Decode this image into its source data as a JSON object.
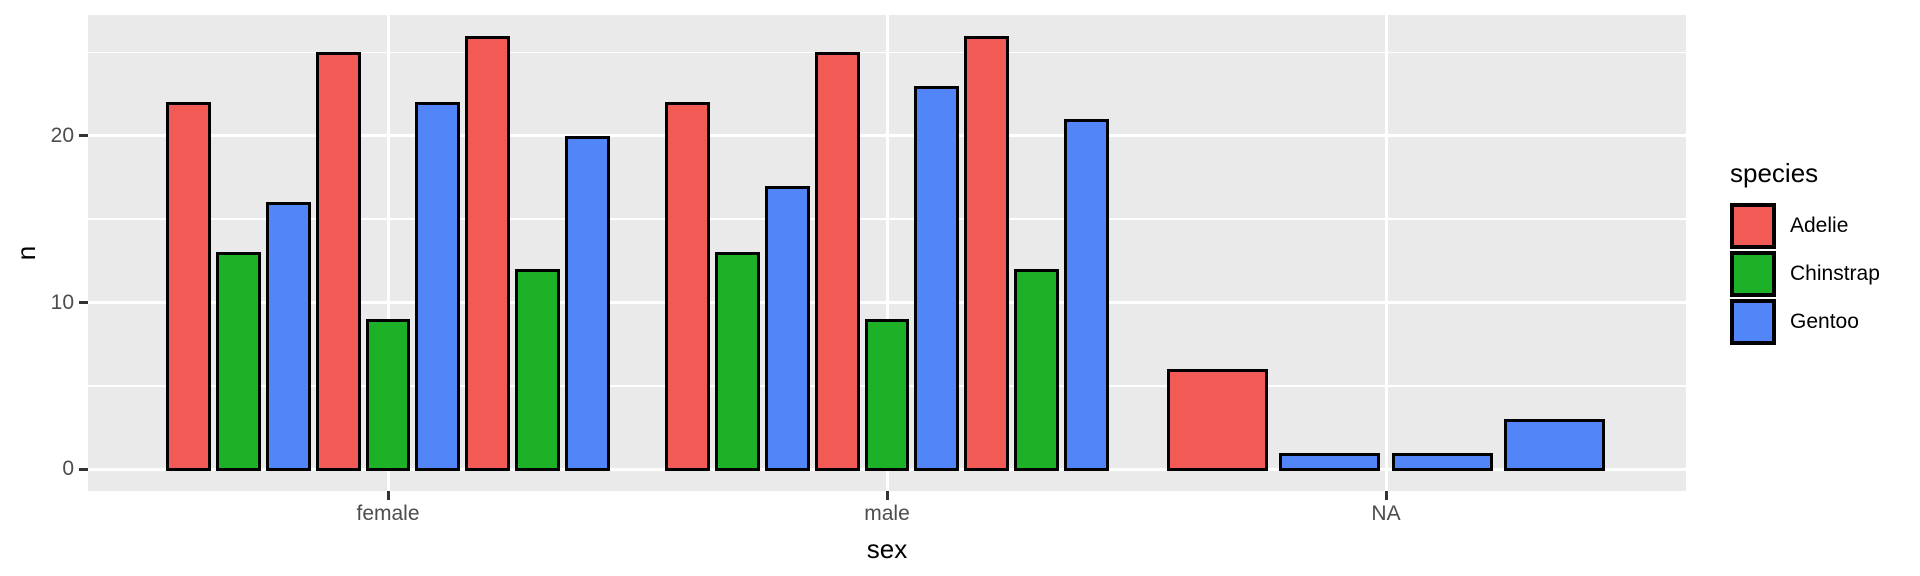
{
  "chart_data": {
    "type": "bar",
    "title": "",
    "xlabel": "sex",
    "ylabel": "n",
    "categories": [
      "female",
      "male",
      "NA"
    ],
    "y_axis": {
      "major_ticks": [
        0,
        10,
        20
      ],
      "minor_gridlines": [
        5,
        15,
        25
      ],
      "ylim": [
        0,
        27.3
      ],
      "grid": "on"
    },
    "legend": {
      "title": "species",
      "position": "right",
      "entries": [
        {
          "label": "Adelie",
          "color": "#F25B55"
        },
        {
          "label": "Chinstrap",
          "color": "#1CB126"
        },
        {
          "label": "Gentoo",
          "color": "#5286F8"
        }
      ]
    },
    "groups": [
      {
        "category": "female",
        "bars": [
          {
            "species": "Adelie",
            "value": 22
          },
          {
            "species": "Chinstrap",
            "value": 13
          },
          {
            "species": "Gentoo",
            "value": 16
          },
          {
            "species": "Adelie",
            "value": 25
          },
          {
            "species": "Chinstrap",
            "value": 9
          },
          {
            "species": "Gentoo",
            "value": 22
          },
          {
            "species": "Adelie",
            "value": 26
          },
          {
            "species": "Chinstrap",
            "value": 12
          },
          {
            "species": "Gentoo",
            "value": 20
          }
        ]
      },
      {
        "category": "male",
        "bars": [
          {
            "species": "Adelie",
            "value": 22
          },
          {
            "species": "Chinstrap",
            "value": 13
          },
          {
            "species": "Gentoo",
            "value": 17
          },
          {
            "species": "Adelie",
            "value": 25
          },
          {
            "species": "Chinstrap",
            "value": 9
          },
          {
            "species": "Gentoo",
            "value": 23
          },
          {
            "species": "Adelie",
            "value": 26
          },
          {
            "species": "Chinstrap",
            "value": 12
          },
          {
            "species": "Gentoo",
            "value": 21
          }
        ]
      },
      {
        "category": "NA",
        "bars": [
          {
            "species": "Adelie",
            "value": 6
          },
          {
            "species": "Gentoo",
            "value": 1
          },
          {
            "species": "Gentoo",
            "value": 1
          },
          {
            "species": "Gentoo",
            "value": 3
          }
        ]
      }
    ],
    "colors": {
      "panel_bg": "#EAEAEA",
      "gridline": "#FFFFFF",
      "bar_border": "#000000",
      "axis_text": "#4D4D4D",
      "axis_title": "#000000",
      "tick_mark": "#333333",
      "outer_bg": "#FFFFFF"
    }
  }
}
